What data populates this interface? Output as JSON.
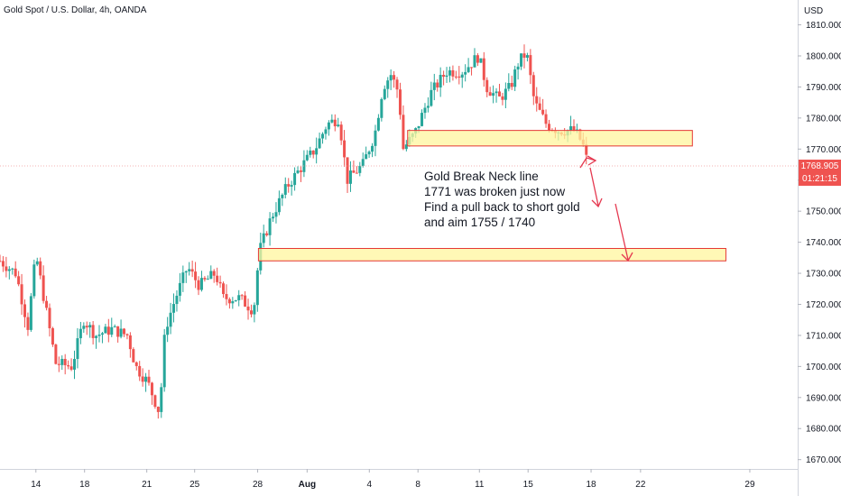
{
  "header": {
    "title": "Gold Spot / U.S. Dollar, 4h, OANDA"
  },
  "colors": {
    "up": "#26a69a",
    "down": "#ef5350",
    "zone_fill": "#fff59d",
    "zone_border": "#e53935",
    "arrow": "#e53950"
  },
  "chart_data": {
    "type": "candlestick",
    "currency_label": "USD",
    "ylim": [
      1667,
      1818
    ],
    "y_ticks": [
      "1670.000",
      "1680.000",
      "1690.000",
      "1700.000",
      "1710.000",
      "1720.000",
      "1730.000",
      "1740.000",
      "1750.000",
      "1760.000",
      "1770.000",
      "1780.000",
      "1790.000",
      "1800.000",
      "1810.000"
    ],
    "x_ticks": [
      {
        "label": "14",
        "frac": 0.045
      },
      {
        "label": "18",
        "frac": 0.106
      },
      {
        "label": "21",
        "frac": 0.184
      },
      {
        "label": "25",
        "frac": 0.244
      },
      {
        "label": "28",
        "frac": 0.323
      },
      {
        "label": "Aug",
        "frac": 0.385
      },
      {
        "label": "4",
        "frac": 0.463
      },
      {
        "label": "8",
        "frac": 0.524
      },
      {
        "label": "11",
        "frac": 0.601
      },
      {
        "label": "15",
        "frac": 0.662
      },
      {
        "label": "18",
        "frac": 0.741
      },
      {
        "label": "22",
        "frac": 0.803
      },
      {
        "label": "29",
        "frac": 0.94
      }
    ],
    "waypoints": [
      [
        0,
        1734
      ],
      [
        0.02,
        1730
      ],
      [
        0.035,
        1713
      ],
      [
        0.045,
        1736
      ],
      [
        0.06,
        1715
      ],
      [
        0.07,
        1701
      ],
      [
        0.09,
        1700
      ],
      [
        0.105,
        1715
      ],
      [
        0.12,
        1710
      ],
      [
        0.14,
        1712
      ],
      [
        0.16,
        1710
      ],
      [
        0.17,
        1700
      ],
      [
        0.185,
        1695
      ],
      [
        0.2,
        1685
      ],
      [
        0.207,
        1712
      ],
      [
        0.22,
        1722
      ],
      [
        0.235,
        1732
      ],
      [
        0.25,
        1726
      ],
      [
        0.27,
        1730
      ],
      [
        0.28,
        1722
      ],
      [
        0.3,
        1722
      ],
      [
        0.318,
        1718
      ],
      [
        0.325,
        1737
      ],
      [
        0.34,
        1748
      ],
      [
        0.36,
        1758
      ],
      [
        0.38,
        1765
      ],
      [
        0.395,
        1770
      ],
      [
        0.41,
        1778
      ],
      [
        0.425,
        1780
      ],
      [
        0.435,
        1760
      ],
      [
        0.455,
        1765
      ],
      [
        0.47,
        1775
      ],
      [
        0.48,
        1790
      ],
      [
        0.49,
        1794
      ],
      [
        0.5,
        1788
      ],
      [
        0.505,
        1770
      ],
      [
        0.52,
        1775
      ],
      [
        0.54,
        1788
      ],
      [
        0.56,
        1795
      ],
      [
        0.58,
        1795
      ],
      [
        0.6,
        1800
      ],
      [
        0.61,
        1790
      ],
      [
        0.625,
        1786
      ],
      [
        0.64,
        1790
      ],
      [
        0.65,
        1798
      ],
      [
        0.66,
        1801
      ],
      [
        0.67,
        1785
      ],
      [
        0.685,
        1778
      ],
      [
        0.7,
        1776
      ],
      [
        0.72,
        1776
      ],
      [
        0.73,
        1772
      ],
      [
        0.735,
        1767
      ]
    ],
    "zones": [
      {
        "x0": 0.511,
        "x1": 0.868,
        "y0": 1771,
        "y1": 1776
      },
      {
        "x0": 0.324,
        "x1": 0.91,
        "y0": 1734,
        "y1": 1738
      }
    ],
    "current_price": "1768.905",
    "countdown": "01:21:15",
    "annotation_lines": [
      "Gold Break Neck line",
      "1771 was broken just now",
      "Find a pull back to short gold",
      "and aim 1755  / 1740"
    ]
  }
}
